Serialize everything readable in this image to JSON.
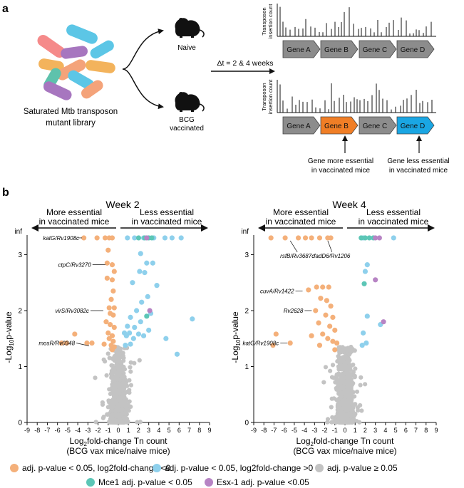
{
  "panel_a": {
    "label": "a",
    "library_caption_line1": "Saturated Mtb transposon",
    "library_caption_line2": "mutant library",
    "mouse_top_label": "Naive",
    "mouse_bottom_label_line1": "BCG",
    "mouse_bottom_label_line2": "vaccinated",
    "time_label": "Δt = 2 & 4 weeks",
    "track_ylabel_line1": "Transposon",
    "track_ylabel_line2": "insertion count",
    "genes_top": [
      "Gene A",
      "Gene B",
      "Gene C",
      "Gene D"
    ],
    "genes_bottom": [
      "Gene A",
      "Gene B",
      "Gene C",
      "Gene D"
    ],
    "annotation_more_line1": "Gene more essential",
    "annotation_more_line2": "in vaccinated mice",
    "annotation_less_line1": "Gene less essential",
    "annotation_less_line2": "in vaccinated mice",
    "colors": {
      "gene_gray": "#8c8c8c",
      "gene_orange": "#f07e26",
      "gene_blue": "#1aa6e3"
    }
  },
  "panel_b": {
    "label": "b",
    "arrow_left_line1": "More essential",
    "arrow_left_line2": "in vaccinated mice",
    "arrow_right_line1": "Less essential",
    "arrow_right_line2": "in vaccinated mice",
    "legend": [
      {
        "text": "adj. p-value < 0.05, log2fold-change <0",
        "color": "#f4b07a"
      },
      {
        "text": "adj. p-value < 0.05, log2fold-change >0",
        "color": "#8ed0ec"
      },
      {
        "text": "adj. p-value ≥ 0.05",
        "color": "#c3c3c3"
      },
      {
        "text": "Mce1 adj. p-value < 0.05",
        "color": "#5cc6b6"
      },
      {
        "text": "Esx-1 adj. p-value <0.05",
        "color": "#b784c4"
      }
    ]
  },
  "chart_data": [
    {
      "type": "scatter",
      "title": "Week 2",
      "xlabel": "Log2fold-change Tn count (BCG vax mice/naive mice)",
      "ylabel": "-Log10p-value",
      "xlim": [
        -9,
        9
      ],
      "ylim": [
        0,
        3.35
      ],
      "x_ticks": [
        -9,
        -8,
        -7,
        -6,
        -5,
        -4,
        -3,
        -2,
        -1,
        0,
        1,
        2,
        3,
        4,
        5,
        6,
        7,
        8,
        9
      ],
      "y_ticks": [
        0,
        1,
        2,
        3
      ],
      "inf_label": "inf",
      "inf_y": 3.3,
      "annotations": [
        {
          "text": "katG/Rv1908c",
          "x": -3.3,
          "y": 3.3
        },
        {
          "text": "ctpC/Rv3270",
          "x": -1.0,
          "y": 2.82
        },
        {
          "text": "virS/Rv3082c",
          "x": -1.2,
          "y": 2.0
        },
        {
          "text": "mosR/Rv0348",
          "x": -2.6,
          "y": 1.42
        }
      ],
      "series": [
        {
          "name": "orange",
          "points": [
            [
              -3.4,
              3.3
            ],
            [
              -2.1,
              3.3
            ],
            [
              -1.3,
              3.3
            ],
            [
              -0.9,
              3.3
            ],
            [
              -0.6,
              3.3
            ],
            [
              -1.0,
              3.08
            ],
            [
              -1.1,
              2.85
            ],
            [
              -0.6,
              2.82
            ],
            [
              -0.4,
              2.7
            ],
            [
              -1.1,
              2.58
            ],
            [
              -0.6,
              2.55
            ],
            [
              -0.5,
              2.35
            ],
            [
              -0.7,
              2.2
            ],
            [
              -0.9,
              2.05
            ],
            [
              -0.4,
              2.05
            ],
            [
              -0.8,
              1.95
            ],
            [
              -0.5,
              1.92
            ],
            [
              -1.2,
              1.8
            ],
            [
              -0.8,
              1.75
            ],
            [
              -0.4,
              1.7
            ],
            [
              -1.0,
              1.6
            ],
            [
              -0.6,
              1.55
            ],
            [
              -0.9,
              1.5
            ],
            [
              -0.5,
              1.45
            ],
            [
              -1.4,
              1.4
            ],
            [
              -0.7,
              1.38
            ],
            [
              -0.4,
              1.35
            ],
            [
              -0.6,
              1.3
            ],
            [
              -2.6,
              1.42
            ],
            [
              -3.1,
              1.42
            ],
            [
              -4.3,
              1.58
            ],
            [
              -5.1,
              1.42
            ],
            [
              -5.6,
              1.42
            ]
          ]
        },
        {
          "name": "blue",
          "points": [
            [
              0.9,
              3.3
            ],
            [
              1.6,
              3.3
            ],
            [
              2.5,
              3.3
            ],
            [
              3.5,
              3.3
            ],
            [
              4.6,
              3.3
            ],
            [
              5.3,
              3.3
            ],
            [
              6.2,
              3.3
            ],
            [
              2.2,
              3.02
            ],
            [
              2.8,
              2.85
            ],
            [
              3.4,
              2.85
            ],
            [
              2.1,
              2.7
            ],
            [
              2.6,
              2.68
            ],
            [
              1.4,
              2.5
            ],
            [
              3.8,
              2.45
            ],
            [
              2.9,
              2.25
            ],
            [
              2.3,
              2.15
            ],
            [
              1.8,
              2.0
            ],
            [
              3.2,
              1.95
            ],
            [
              1.2,
              1.88
            ],
            [
              2.2,
              1.8
            ],
            [
              0.9,
              1.72
            ],
            [
              1.6,
              1.7
            ],
            [
              3.0,
              1.65
            ],
            [
              0.6,
              1.6
            ],
            [
              1.1,
              1.6
            ],
            [
              2.0,
              1.58
            ],
            [
              2.5,
              1.55
            ],
            [
              0.8,
              1.55
            ],
            [
              1.5,
              1.5
            ],
            [
              4.7,
              1.5
            ],
            [
              7.3,
              1.85
            ],
            [
              1.2,
              1.4
            ],
            [
              0.7,
              1.38
            ],
            [
              5.8,
              1.22
            ]
          ]
        },
        {
          "name": "mce1",
          "points": [
            [
              2.0,
              3.3
            ],
            [
              2.6,
              3.3
            ],
            [
              3.0,
              3.3
            ],
            [
              3.3,
              3.3
            ],
            [
              2.8,
              1.9
            ]
          ]
        },
        {
          "name": "esx1",
          "points": [
            [
              2.8,
              3.3
            ],
            [
              3.1,
              2.0
            ]
          ]
        }
      ]
    },
    {
      "type": "scatter",
      "title": "Week 4",
      "xlabel": "Log2fold-change Tn count (BCG vax mice/naive mice)",
      "ylabel": "-Log10p-value",
      "xlim": [
        -9,
        9
      ],
      "ylim": [
        0,
        3.35
      ],
      "x_ticks": [
        -9,
        -8,
        -7,
        -6,
        -5,
        -4,
        -3,
        -2,
        -1,
        0,
        1,
        2,
        3,
        4,
        5,
        6,
        7,
        8,
        9
      ],
      "y_ticks": [
        0,
        1,
        2,
        3
      ],
      "inf_label": "inf",
      "inf_y": 3.3,
      "annotations": [
        {
          "text": "rsfB/Rv3687c",
          "x": -5.4,
          "y": 3.3
        },
        {
          "text": "fadD6/Rv1206",
          "x": -1.7,
          "y": 3.3
        },
        {
          "text": "cuvA/Rv1422",
          "x": -3.9,
          "y": 2.35
        },
        {
          "text": "Rv2628",
          "x": -3.0,
          "y": 2.0
        },
        {
          "text": "katG/Rv1908c",
          "x": -5.4,
          "y": 1.42
        }
      ],
      "series": [
        {
          "name": "orange",
          "points": [
            [
              -7.3,
              3.3
            ],
            [
              -5.9,
              3.3
            ],
            [
              -4.6,
              3.3
            ],
            [
              -3.9,
              3.3
            ],
            [
              -3.3,
              3.3
            ],
            [
              -2.5,
              3.3
            ],
            [
              -1.7,
              3.3
            ],
            [
              -1.4,
              3.3
            ],
            [
              -3.6,
              2.37
            ],
            [
              -2.8,
              2.42
            ],
            [
              -2.2,
              2.42
            ],
            [
              -1.6,
              2.42
            ],
            [
              -2.4,
              2.22
            ],
            [
              -1.8,
              2.18
            ],
            [
              -2.9,
              2.0
            ],
            [
              -1.4,
              2.08
            ],
            [
              -1.9,
              1.92
            ],
            [
              -1.2,
              1.88
            ],
            [
              -2.6,
              1.78
            ],
            [
              -1.5,
              1.72
            ],
            [
              -1.0,
              1.65
            ],
            [
              -2.2,
              1.58
            ],
            [
              -3.3,
              1.55
            ],
            [
              -1.7,
              1.5
            ],
            [
              -1.2,
              1.45
            ],
            [
              -0.8,
              1.42
            ],
            [
              -5.4,
              1.42
            ],
            [
              -6.8,
              1.58
            ],
            [
              -7.1,
              1.38
            ],
            [
              -2.5,
              1.38
            ],
            [
              -1.0,
              1.3
            ]
          ]
        },
        {
          "name": "blue",
          "points": [
            [
              1.8,
              3.3
            ],
            [
              4.8,
              3.3
            ],
            [
              2.2,
              2.82
            ],
            [
              2.0,
              2.7
            ],
            [
              2.2,
              1.9
            ],
            [
              3.5,
              1.75
            ],
            [
              1.8,
              1.6
            ],
            [
              2.1,
              1.42
            ],
            [
              1.7,
              1.38
            ]
          ]
        },
        {
          "name": "mce1",
          "points": [
            [
              1.6,
              3.3
            ],
            [
              2.0,
              3.3
            ],
            [
              2.4,
              3.3
            ],
            [
              2.8,
              3.3
            ],
            [
              1.9,
              2.48
            ]
          ]
        },
        {
          "name": "esx1",
          "points": [
            [
              3.0,
              3.3
            ],
            [
              3.4,
              3.3
            ],
            [
              3.0,
              2.55
            ],
            [
              3.8,
              1.8
            ]
          ]
        }
      ]
    }
  ]
}
